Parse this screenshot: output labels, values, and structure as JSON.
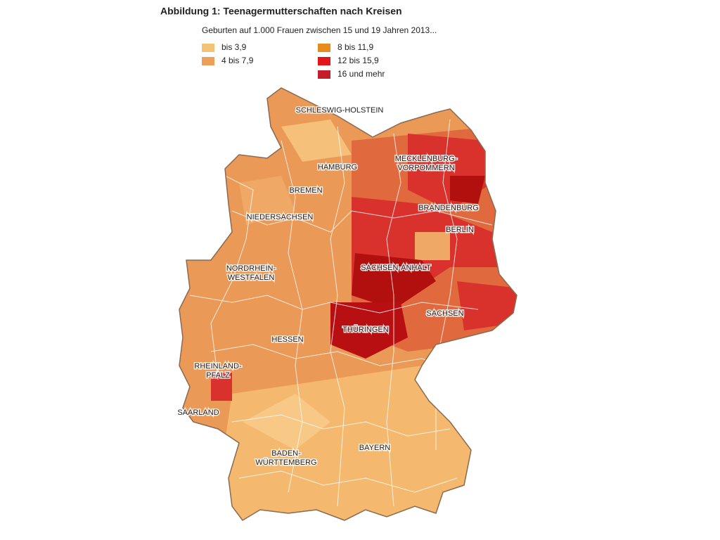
{
  "header": {
    "title": "Abbildung 1: Teenagermutterschaften nach Kreisen",
    "subtitle": "Geburten auf 1.000 Frauen zwischen 15 und 19 Jahren 2013..."
  },
  "legend": [
    {
      "label": "bis 3,9",
      "color": "#f5c277"
    },
    {
      "label": "4 bis 7,9",
      "color": "#eea05a"
    },
    {
      "label": "8 bis 11,9",
      "color": "#e98a1e"
    },
    {
      "label": "12 bis 15,9",
      "color": "#e2151b"
    },
    {
      "label": "16 und mehr",
      "color": "#c41e2c"
    }
  ],
  "map": {
    "regions": [
      {
        "lines": [
          "SCHLESWIG-HOLSTEIN"
        ]
      },
      {
        "lines": [
          "HAMBURG"
        ]
      },
      {
        "lines": [
          "MECKLENBURG-",
          "VORPOMMERN"
        ]
      },
      {
        "lines": [
          "BREMEN"
        ]
      },
      {
        "lines": [
          "BRANDENBURG"
        ]
      },
      {
        "lines": [
          "NIEDERSACHSEN"
        ]
      },
      {
        "lines": [
          "BERLIN"
        ]
      },
      {
        "lines": [
          "NORDRHEIN-",
          "WESTFALEN"
        ]
      },
      {
        "lines": [
          "SACHSEN-ANHALT"
        ]
      },
      {
        "lines": [
          "SACHSEN"
        ]
      },
      {
        "lines": [
          "THÜRINGEN"
        ]
      },
      {
        "lines": [
          "HESSEN"
        ]
      },
      {
        "lines": [
          "RHEINLAND-",
          "PFALZ"
        ]
      },
      {
        "lines": [
          "SAARLAND"
        ]
      },
      {
        "lines": [
          "BAYERN"
        ]
      },
      {
        "lines": [
          "BADEN-",
          "WÜRTTEMBERG"
        ]
      }
    ]
  }
}
